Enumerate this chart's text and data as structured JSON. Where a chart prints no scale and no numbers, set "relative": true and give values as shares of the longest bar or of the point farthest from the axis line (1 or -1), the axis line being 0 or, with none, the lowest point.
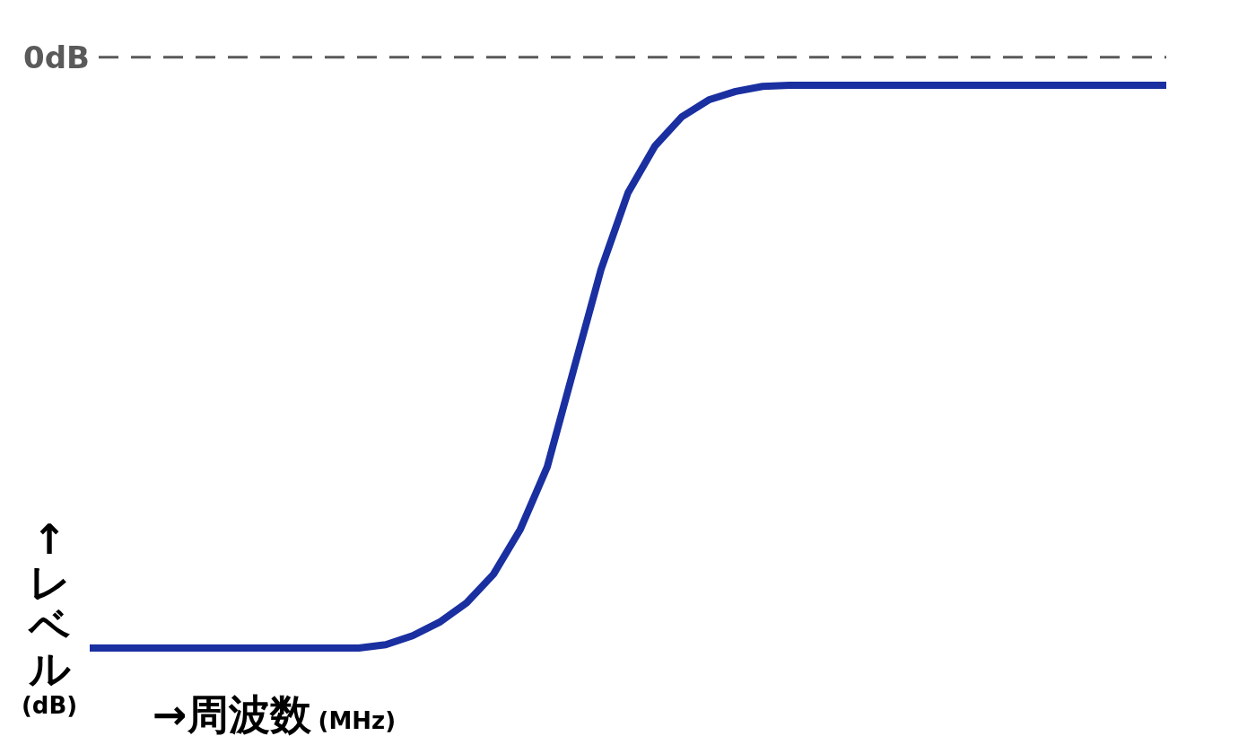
{
  "chart_data": {
    "type": "line",
    "xlabel": "→周波数(MHz)",
    "ylabel": "↑レベル(dB)",
    "relative": true,
    "categories": [
      null,
      null,
      null,
      null,
      null,
      null,
      null,
      null,
      null,
      null,
      null,
      null,
      null,
      null,
      null,
      null,
      null,
      null,
      null,
      null,
      null,
      null,
      null,
      null,
      null,
      null,
      null,
      null,
      null,
      null,
      null,
      null,
      null,
      null,
      null,
      null,
      null,
      null,
      null,
      null,
      null
    ],
    "series": [
      {
        "color": "#1a2fa0",
        "values": [
          0,
          0,
          0,
          0,
          0,
          0,
          0,
          0,
          0,
          0,
          0,
          0.006,
          0.022,
          0.046,
          0.08,
          0.131,
          0.211,
          0.322,
          0.498,
          0.673,
          0.809,
          0.892,
          0.944,
          0.974,
          0.989,
          0.998,
          1,
          1,
          1,
          1,
          1,
          1,
          1,
          1,
          1,
          1,
          1,
          1,
          1,
          1,
          1
        ]
      }
    ],
    "ref_lines": [
      {
        "axis": "y",
        "value": 1.05,
        "label": "0dB",
        "color": "#5a5a5a",
        "line_style": "dashed"
      }
    ]
  }
}
